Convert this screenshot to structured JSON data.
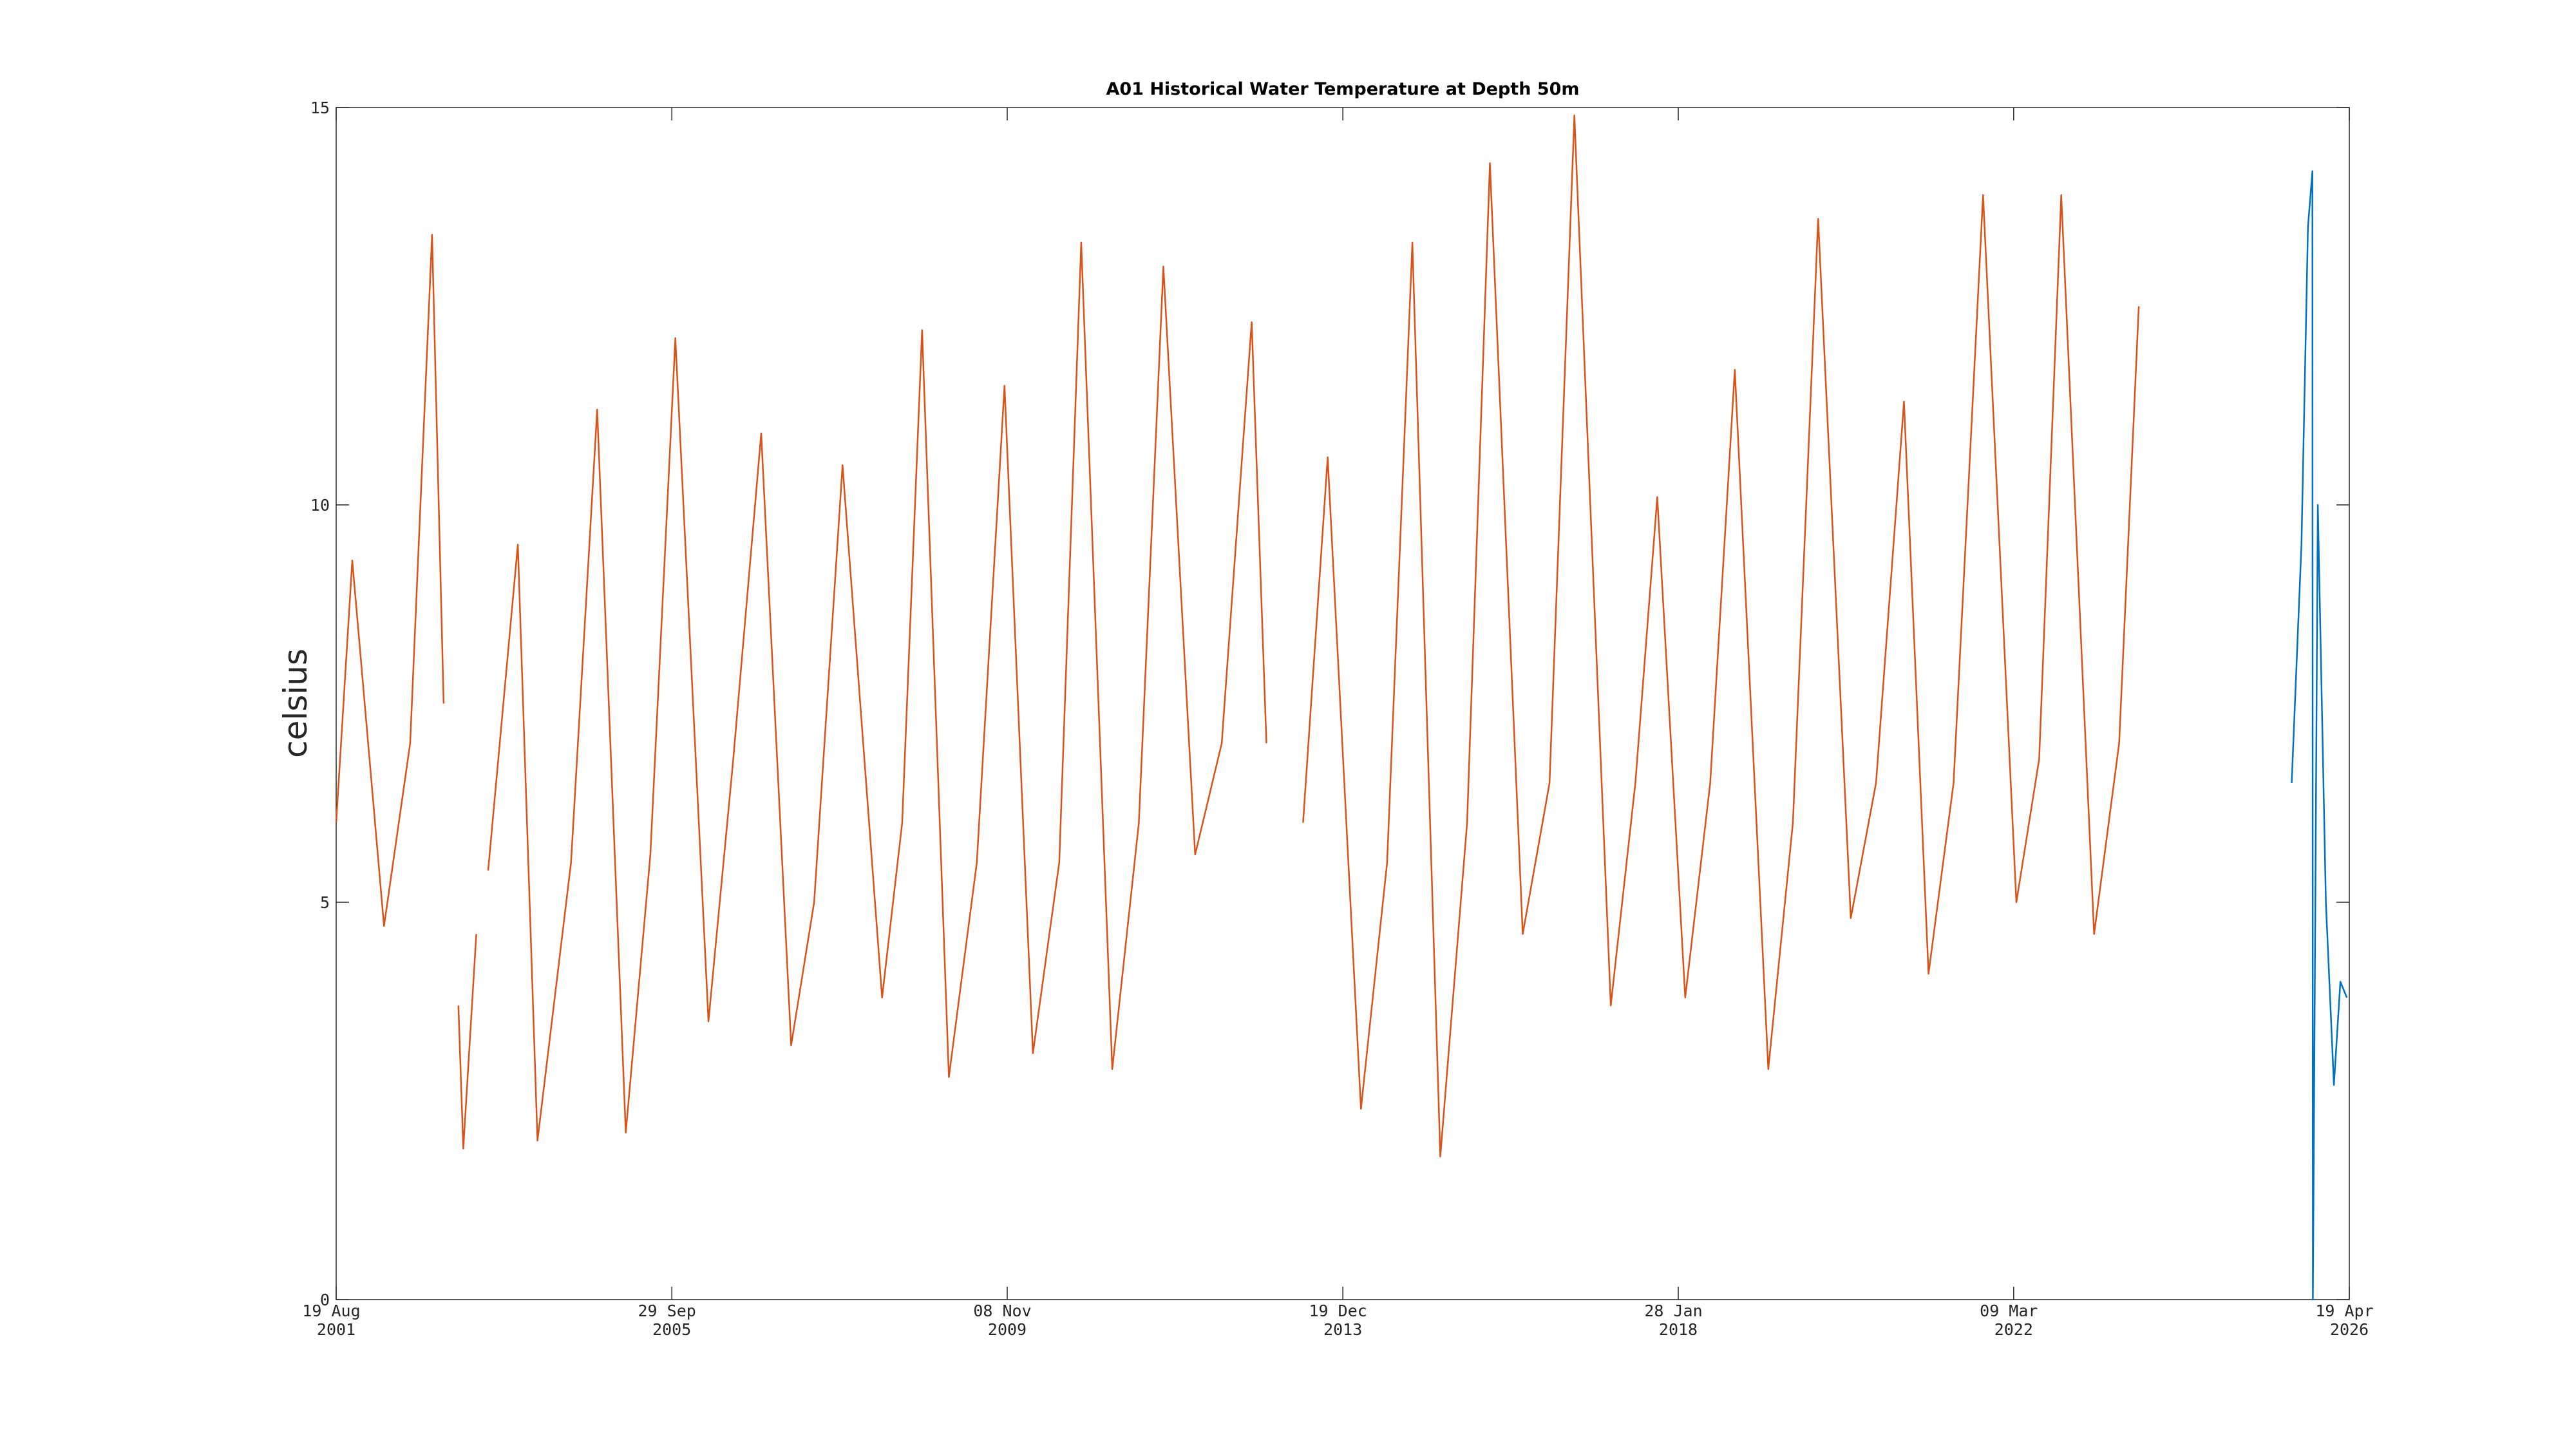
{
  "chart_data": {
    "type": "line",
    "title": "A01 Historical Water Temperature at Depth 50m",
    "y_label": "celsius",
    "xlim": [
      "2001-08-19",
      "2026-04-19"
    ],
    "xticks": [
      {
        "value": "2001-08-19",
        "label": "19 Aug 2001"
      },
      {
        "value": "2005-09-29",
        "label": "29 Sep 2005"
      },
      {
        "value": "2009-11-08",
        "label": "08 Nov 2009"
      },
      {
        "value": "2013-12-19",
        "label": "19 Dec 2013"
      },
      {
        "value": "2018-01-28",
        "label": "28 Jan 2018"
      },
      {
        "value": "2022-03-09",
        "label": "09 Mar 2022"
      },
      {
        "value": "2026-04-19",
        "label": "19 Apr 2026"
      }
    ],
    "ylim": [
      0,
      15
    ],
    "yticks": [
      0,
      5,
      10,
      15
    ],
    "series": [
      {
        "color": "#d95319",
        "x": [
          "2001-08-19",
          "2001-10-30",
          "2002-03-21",
          "2002-07-16",
          "2002-10-22",
          "2002-12-13",
          null,
          "2003-02-17",
          "2003-03-11",
          "2003-05-08",
          null,
          "2003-06-30",
          "2003-11-10",
          "2004-02-06",
          "2004-07-05",
          "2004-10-30",
          "2005-03-07",
          "2005-06-25",
          "2005-10-15",
          "2006-03-12",
          "2006-07-01",
          "2006-11-03",
          "2007-03-17",
          "2007-06-28",
          "2007-11-02",
          "2008-04-27",
          "2008-07-26",
          "2008-10-23",
          "2009-02-20",
          "2009-06-25",
          "2009-10-27",
          "2010-03-03",
          "2010-06-29",
          "2010-10-05",
          "2011-02-21",
          "2011-06-20",
          "2011-10-08",
          "2012-02-27",
          "2012-06-25",
          "2012-11-06",
          "2013-01-11",
          null,
          "2013-06-24",
          "2013-10-12",
          "2014-03-10",
          "2014-07-05",
          "2014-10-26",
          "2015-02-28",
          "2015-06-28",
          "2015-10-08",
          "2016-03-03",
          "2016-07-01",
          "2016-10-20",
          "2017-04-01",
          "2017-07-20",
          "2017-10-26",
          "2018-02-28",
          "2018-06-20",
          "2018-10-08",
          "2019-03-07",
          "2019-06-25",
          "2019-10-16",
          "2020-03-10",
          "2020-07-01",
          "2020-11-03",
          "2021-02-21",
          "2021-06-13",
          "2021-10-23",
          "2022-03-21",
          "2022-07-01",
          "2022-10-08",
          "2023-03-04",
          "2023-06-24",
          "2023-09-20"
        ],
        "values": [
          6.0,
          9.3,
          4.7,
          7.0,
          13.4,
          7.5,
          null,
          3.7,
          1.9,
          4.6,
          null,
          5.4,
          9.5,
          2.0,
          5.5,
          11.2,
          2.1,
          5.6,
          12.1,
          3.5,
          6.8,
          10.9,
          3.2,
          5.0,
          10.5,
          3.8,
          6.0,
          12.2,
          2.8,
          5.5,
          11.5,
          3.1,
          5.5,
          13.3,
          2.9,
          6.0,
          13.0,
          5.6,
          7.0,
          12.3,
          7.0,
          null,
          6.0,
          10.6,
          2.4,
          5.5,
          13.3,
          1.8,
          6.0,
          14.3,
          4.6,
          6.5,
          14.9,
          3.7,
          6.5,
          10.1,
          3.8,
          6.5,
          11.7,
          2.9,
          6.0,
          13.6,
          4.8,
          6.5,
          11.3,
          4.1,
          6.5,
          13.9,
          5.0,
          6.8,
          13.9,
          4.6,
          7.0,
          12.5
        ]
      },
      {
        "color": "#0072bd",
        "x": [
          "2025-08-04",
          "2025-09-17",
          "2025-10-16",
          "2025-11-05",
          "2025-11-07",
          "2025-11-29",
          "2026-01-04",
          "2026-02-09",
          "2026-03-10",
          "2026-04-08"
        ],
        "values": [
          6.5,
          9.5,
          13.5,
          14.2,
          0.0,
          10.0,
          5.0,
          2.7,
          4.0,
          3.8
        ]
      }
    ]
  }
}
